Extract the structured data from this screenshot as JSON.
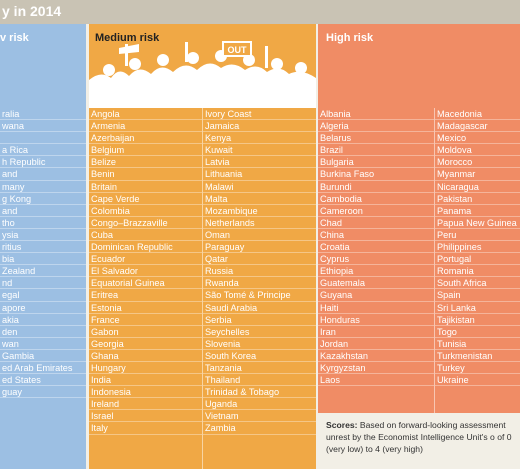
{
  "title": "y in 2014",
  "headers": {
    "low": "v risk",
    "medium": "Medium risk",
    "high": "High risk"
  },
  "illustration": {
    "sign_text": "OUT"
  },
  "low_risk": [
    "ralia",
    "wana",
    "",
    "a Rica",
    "h Republic",
    "and",
    "many",
    "g Kong",
    "and",
    "tho",
    "ysia",
    "ritius",
    "bia",
    "Zealand",
    "nd",
    "egal",
    "apore",
    "akia",
    "den",
    "wan",
    "Gambia",
    "ed Arab Emirates",
    "ed States",
    "guay"
  ],
  "medium_risk_col1": [
    "Angola",
    "Armenia",
    "Azerbaijan",
    "Belgium",
    "Belize",
    "Benin",
    "Britain",
    "Cape Verde",
    "Colombia",
    "Congo–Brazzaville",
    "Cuba",
    "Dominican Republic",
    "Ecuador",
    "El Salvador",
    "Equatorial Guinea",
    "Eritrea",
    "Estonia",
    "France",
    "Gabon",
    "Georgia",
    "Ghana",
    "Hungary",
    "India",
    "Indonesia",
    "Ireland",
    "Israel",
    "Italy"
  ],
  "medium_risk_col2": [
    "Ivory Coast",
    "Jamaica",
    "Kenya",
    "Kuwait",
    "Latvia",
    "Lithuania",
    "Malawi",
    "Malta",
    "Mozambique",
    "Netherlands",
    "Oman",
    "Paraguay",
    "Qatar",
    "Russia",
    "Rwanda",
    "São Tomé & Principe",
    "Saudi Arabia",
    "Serbia",
    "Seychelles",
    "Slovenia",
    "South Korea",
    "Tanzania",
    "Thailand",
    "Trinidad & Tobago",
    "Uganda",
    "Vietnam",
    "Zambia"
  ],
  "high_risk_col1": [
    "Albania",
    "Algeria",
    "Belarus",
    "Brazil",
    "Bulgaria",
    "Burkina Faso",
    "Burundi",
    "Cambodia",
    "Cameroon",
    "Chad",
    "China",
    "Croatia",
    "Cyprus",
    "Ethiopia",
    "Guatemala",
    "Guyana",
    "Haiti",
    "Honduras",
    "Iran",
    "Jordan",
    "Kazakhstan",
    "Kyrgyzstan",
    "Laos"
  ],
  "high_risk_col2": [
    "Macedonia",
    "Madagascar",
    "Mexico",
    "Moldova",
    "Morocco",
    "Myanmar",
    "Nicaragua",
    "Pakistan",
    "Panama",
    "Papua New Guinea",
    "Peru",
    "Philippines",
    "Portugal",
    "Romania",
    "South Africa",
    "Spain",
    "Sri Lanka",
    "Tajikistan",
    "Togo",
    "Tunisia",
    "Turkmenistan",
    "Turkey",
    "Ukraine"
  ],
  "scores": {
    "label": "Scores:",
    "text": " Based on forward-looking assessment unrest by the Economist Intelligence Unit's o of 0 (very low) to 4 (very high)"
  },
  "colors": {
    "low": "#9cbfe3",
    "medium": "#f0a845",
    "high": "#f08c65",
    "title_bar": "#c9c3b4"
  }
}
